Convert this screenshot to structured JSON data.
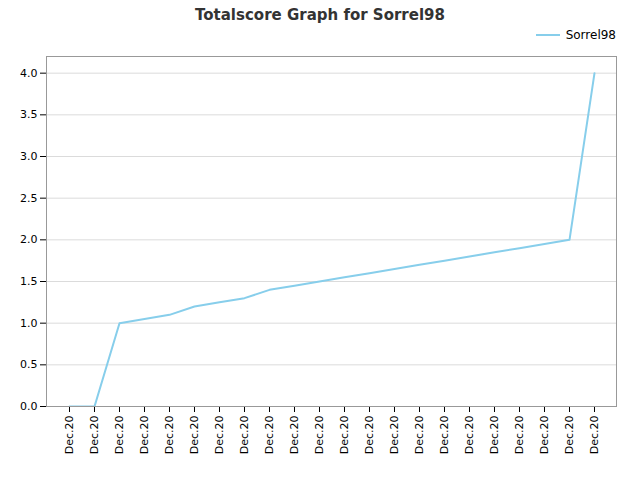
{
  "chart_data": {
    "type": "line",
    "title": "Totalscore Graph for Sorrel98",
    "categories": [
      "Dec.20",
      "Dec.20",
      "Dec.20",
      "Dec.20",
      "Dec.20",
      "Dec.20",
      "Dec.20",
      "Dec.20",
      "Dec.20",
      "Dec.20",
      "Dec.20",
      "Dec.20",
      "Dec.20",
      "Dec.20",
      "Dec.20",
      "Dec.20",
      "Dec.20",
      "Dec.20",
      "Dec.20",
      "Dec.20",
      "Dec.20",
      "Dec.20"
    ],
    "series": [
      {
        "name": "Sorrel98",
        "color": "#87CEEB",
        "values": [
          0.0,
          0.0,
          1.0,
          1.05,
          1.1,
          1.2,
          1.25,
          1.3,
          1.4,
          1.45,
          1.5,
          1.55,
          1.6,
          1.65,
          1.7,
          1.75,
          1.8,
          1.85,
          1.9,
          1.95,
          2.0,
          4.0
        ]
      }
    ],
    "ylim": [
      0.0,
      4.2
    ],
    "yticks": [
      {
        "value": 0.0,
        "label": "0.0"
      },
      0.5,
      {
        "value": 1.0,
        "label": "1.0"
      },
      1.5,
      {
        "value": 2.0,
        "label": "2.0"
      },
      2.5,
      {
        "value": 3.0,
        "label": "3.0"
      },
      3.5,
      {
        "value": 4.0,
        "label": "4.0"
      }
    ],
    "grid": true,
    "legend": "upper right"
  }
}
